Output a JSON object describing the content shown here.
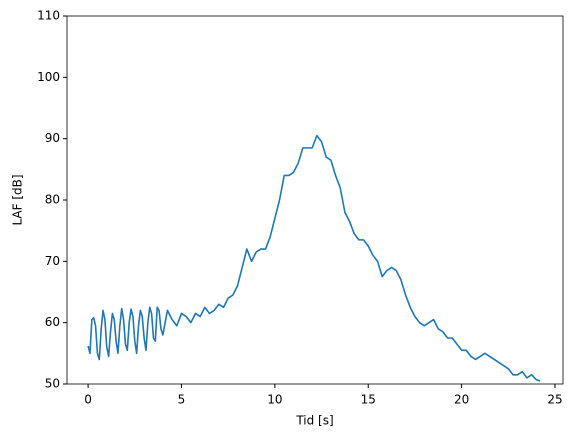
{
  "chart_data": {
    "type": "line",
    "xlabel": "Tid [s]",
    "ylabel": "LAF [dB]",
    "xlim": [
      -1.13,
      25.43
    ],
    "ylim": [
      50,
      110
    ],
    "xticks": [
      0,
      5,
      10,
      15,
      20,
      25
    ],
    "yticks": [
      50,
      60,
      70,
      80,
      90,
      100,
      110
    ],
    "series": [
      {
        "color": "#1f77b4",
        "x": [
          0,
          0.1,
          0.2,
          0.3,
          0.4,
          0.5,
          0.6,
          0.7,
          0.8,
          0.9,
          1.0,
          1.1,
          1.2,
          1.3,
          1.4,
          1.5,
          1.6,
          1.7,
          1.8,
          1.9,
          2.0,
          2.1,
          2.2,
          2.3,
          2.4,
          2.5,
          2.6,
          2.7,
          2.8,
          2.9,
          3.0,
          3.1,
          3.2,
          3.3,
          3.4,
          3.5,
          3.6,
          3.7,
          3.8,
          3.9,
          4.0,
          4.25,
          4.5,
          4.75,
          5.0,
          5.25,
          5.5,
          5.75,
          6.0,
          6.25,
          6.5,
          6.75,
          7.0,
          7.25,
          7.5,
          7.75,
          8.0,
          8.25,
          8.5,
          8.75,
          9.0,
          9.25,
          9.5,
          9.75,
          10.0,
          10.25,
          10.5,
          10.75,
          11.0,
          11.25,
          11.5,
          11.75,
          12.0,
          12.25,
          12.5,
          12.75,
          13.0,
          13.25,
          13.5,
          13.75,
          14.0,
          14.25,
          14.5,
          14.75,
          15.0,
          15.25,
          15.5,
          15.75,
          16.0,
          16.25,
          16.5,
          16.75,
          17.0,
          17.25,
          17.5,
          17.75,
          18.0,
          18.25,
          18.5,
          18.75,
          19.0,
          19.25,
          19.5,
          19.75,
          20.0,
          20.25,
          20.5,
          20.75,
          21.0,
          21.25,
          21.5,
          21.75,
          22.0,
          22.25,
          22.5,
          22.75,
          23.0,
          23.25,
          23.5,
          23.75,
          24.0,
          24.2
        ],
        "values": [
          56.2,
          55,
          60.5,
          60.8,
          59.5,
          55,
          54,
          59,
          62,
          60.5,
          56,
          54.5,
          58.5,
          61.5,
          60.5,
          57,
          55,
          59.5,
          62.3,
          60.5,
          56.5,
          55.5,
          60,
          62.2,
          61,
          57,
          55,
          59.5,
          62,
          61,
          57.5,
          55.5,
          60,
          62.5,
          61.5,
          57.5,
          57,
          62.5,
          62,
          59,
          58,
          62,
          60.5,
          59.5,
          61.5,
          61,
          60,
          61.5,
          61,
          62.5,
          61.5,
          62,
          63,
          62.5,
          64,
          64.5,
          66,
          69,
          72,
          70,
          71.5,
          72,
          72,
          74,
          77,
          80,
          84,
          84,
          84.5,
          86,
          88.5,
          88.5,
          88.5,
          90.5,
          89.5,
          87,
          86.5,
          84,
          82,
          78,
          76.5,
          74.5,
          73.5,
          73.5,
          72.5,
          71,
          70,
          67.5,
          68.5,
          69,
          68.5,
          67,
          64.5,
          62.5,
          61,
          60,
          59.5,
          60,
          60.5,
          59,
          58.5,
          57.5,
          57.5,
          56.5,
          55.5,
          55.5,
          54.5,
          54,
          54.5,
          55,
          54.5,
          54,
          53.5,
          53,
          52.5,
          51.5,
          51.5,
          52,
          51,
          51.5,
          50.7,
          50.5
        ]
      }
    ]
  }
}
